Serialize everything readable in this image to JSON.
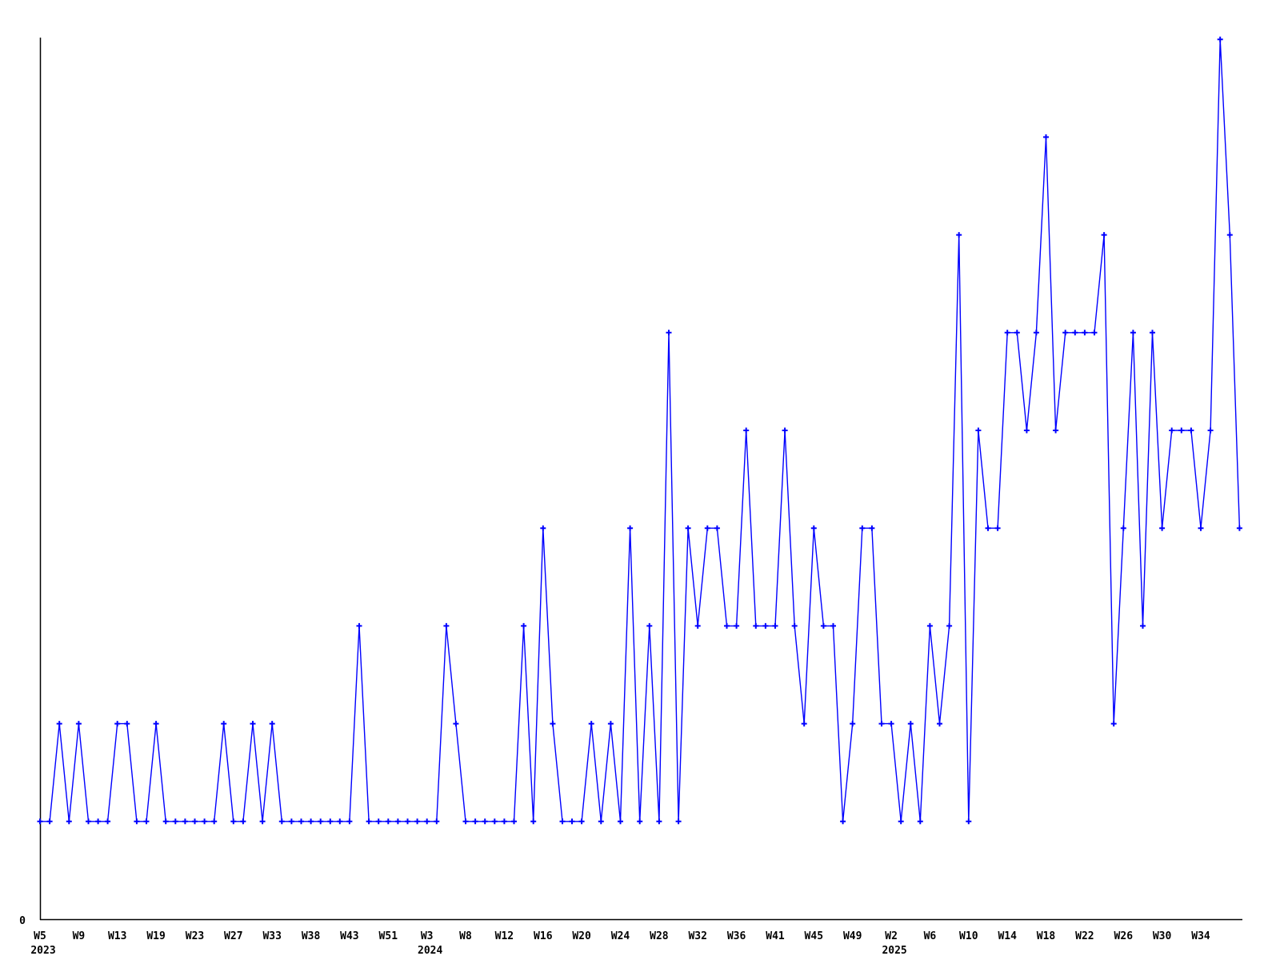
{
  "chart": {
    "background": "#ffffff",
    "axis_color": "#000000",
    "y_axis": {
      "zero_label": "0"
    },
    "series_color": "#0000ff",
    "marker": "plus"
  },
  "chart_data": {
    "type": "line",
    "title": "",
    "xlabel": "",
    "ylabel": "",
    "grid": false,
    "legend": "none",
    "ylim": [
      0,
      9
    ],
    "y_axis_labels_visible": [
      "0"
    ],
    "values": [
      1,
      1,
      2,
      1,
      2,
      1,
      1,
      1,
      2,
      2,
      1,
      1,
      2,
      1,
      1,
      1,
      1,
      1,
      1,
      2,
      1,
      1,
      2,
      1,
      2,
      1,
      1,
      1,
      1,
      1,
      1,
      1,
      1,
      3,
      1,
      1,
      1,
      1,
      1,
      1,
      1,
      1,
      3,
      2,
      1,
      1,
      1,
      1,
      1,
      1,
      3,
      1,
      4,
      2,
      1,
      1,
      1,
      2,
      1,
      2,
      1,
      4,
      1,
      3,
      1,
      6,
      1,
      4,
      3,
      4,
      4,
      3,
      3,
      5,
      3,
      3,
      3,
      5,
      3,
      2,
      4,
      3,
      3,
      1,
      2,
      4,
      4,
      2,
      2,
      1,
      2,
      1,
      3,
      2,
      3,
      7,
      1,
      5,
      4,
      4,
      6,
      6,
      5,
      6,
      8,
      5,
      6,
      6,
      6,
      6,
      7,
      2,
      4,
      6,
      3,
      6,
      4,
      5,
      5,
      5,
      4,
      5,
      9,
      7,
      4
    ],
    "x_ticks": [
      {
        "i": 0,
        "label": "W5",
        "year": "2023"
      },
      {
        "i": 4,
        "label": "W9"
      },
      {
        "i": 8,
        "label": "W13"
      },
      {
        "i": 12,
        "label": "W19"
      },
      {
        "i": 16,
        "label": "W23"
      },
      {
        "i": 20,
        "label": "W27"
      },
      {
        "i": 24,
        "label": "W33"
      },
      {
        "i": 28,
        "label": "W38"
      },
      {
        "i": 32,
        "label": "W43"
      },
      {
        "i": 36,
        "label": "W51"
      },
      {
        "i": 40,
        "label": "W3",
        "year": "2024"
      },
      {
        "i": 44,
        "label": "W8"
      },
      {
        "i": 48,
        "label": "W12"
      },
      {
        "i": 52,
        "label": "W16"
      },
      {
        "i": 56,
        "label": "W20"
      },
      {
        "i": 60,
        "label": "W24"
      },
      {
        "i": 64,
        "label": "W28"
      },
      {
        "i": 68,
        "label": "W32"
      },
      {
        "i": 72,
        "label": "W36"
      },
      {
        "i": 76,
        "label": "W41"
      },
      {
        "i": 80,
        "label": "W45"
      },
      {
        "i": 84,
        "label": "W49"
      },
      {
        "i": 88,
        "label": "W2",
        "year": "2025"
      },
      {
        "i": 92,
        "label": "W6"
      },
      {
        "i": 96,
        "label": "W10"
      },
      {
        "i": 100,
        "label": "W14"
      },
      {
        "i": 104,
        "label": "W18"
      },
      {
        "i": 108,
        "label": "W22"
      },
      {
        "i": 112,
        "label": "W26"
      },
      {
        "i": 116,
        "label": "W30"
      },
      {
        "i": 120,
        "label": "W34"
      }
    ]
  }
}
